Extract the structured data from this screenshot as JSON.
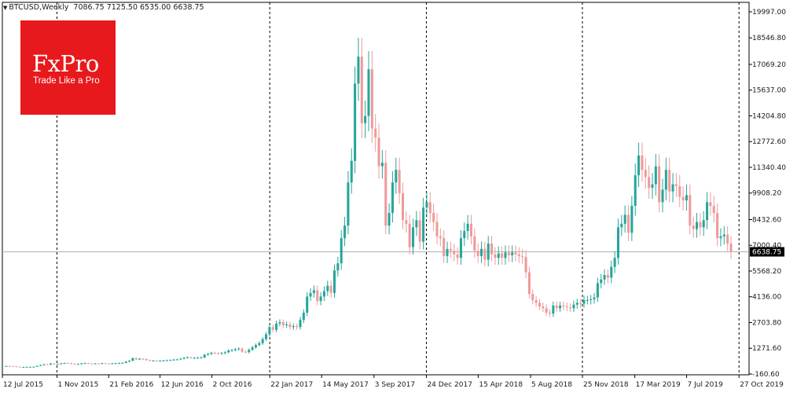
{
  "header": {
    "symbol": "BTCUSD,Weekly",
    "ohlc": "7086.75 7125.50 6535.00 6638.75"
  },
  "logo": {
    "name": "FxPro",
    "tagline": "Trade Like a Pro"
  },
  "current_price_label": "6638.75",
  "colors": {
    "up": "#26a69a",
    "down": "#ef9a9a",
    "price_tag": "#000000",
    "logo_bg": "#e8191c"
  },
  "chart_data": {
    "type": "candlestick",
    "title": "",
    "xlabel": "",
    "ylabel": "",
    "ylim": [
      -160.6,
      19997
    ],
    "grid": false,
    "period_separators": [
      "1 Nov 2015",
      "22 Jan 2017",
      "24 Dec 2017",
      "25 Nov 2018",
      "27 Oct 2019"
    ],
    "horizontal_line": 6638.75,
    "y_ticks": [
      "19997.00",
      "18546.80",
      "17069.20",
      "15637.00",
      "14204.80",
      "12772.60",
      "11340.40",
      "9908.20",
      "8432.60",
      "7000.40",
      "5568.20",
      "4136.00",
      "2703.80",
      "1271.60",
      "-160.60"
    ],
    "x_ticks": [
      "12 Jul 2015",
      "1 Nov 2015",
      "21 Feb 2016",
      "12 Jun 2016",
      "2 Oct 2016",
      "22 Jan 2017",
      "14 May 2017",
      "3 Sep 2017",
      "24 Dec 2017",
      "15 Apr 2018",
      "5 Aug 2018",
      "25 Nov 2018",
      "17 Mar 2019",
      "7 Jul 2019",
      "27 Oct 2019"
    ],
    "close": [
      285,
      280,
      265,
      245,
      225,
      232,
      238,
      240,
      245,
      290,
      335,
      380,
      360,
      420,
      390,
      400,
      430,
      450,
      440,
      410,
      385,
      395,
      430,
      445,
      420,
      410,
      425,
      415,
      440,
      420,
      410,
      430,
      440,
      450,
      460,
      530,
      580,
      720,
      650,
      690,
      670,
      610,
      580,
      585,
      570,
      580,
      590,
      605,
      610,
      640,
      650,
      690,
      740,
      770,
      730,
      740,
      750,
      760,
      910,
      960,
      1020,
      1000,
      970,
      1000,
      1050,
      1150,
      1170,
      1220,
      1250,
      1080,
      1050,
      1190,
      1320,
      1450,
      1560,
      1780,
      2050,
      2450,
      2300,
      2650,
      2720,
      2550,
      2600,
      2450,
      2500,
      2450,
      2850,
      3250,
      4150,
      4350,
      4500,
      3900,
      4150,
      4450,
      4750,
      4350,
      5600,
      6000,
      7400,
      8100,
      10500,
      11700,
      16000,
      17500,
      13800,
      14200,
      16800,
      13500,
      13000,
      11400,
      11600,
      8100,
      8800,
      10500,
      11200,
      9900,
      8400,
      8200,
      6900,
      8000,
      8400,
      7200,
      9100,
      9400,
      8800,
      8300,
      7500,
      7400,
      6400,
      6800,
      6700,
      6500,
      6300,
      7400,
      7800,
      8200,
      7500,
      6700,
      6400,
      6800,
      6200,
      7100,
      6500,
      6300,
      6550,
      6300,
      6600,
      6450,
      6600,
      6500,
      6400,
      6350,
      5500,
      4300,
      3950,
      3800,
      3600,
      3500,
      3250,
      3200,
      3650,
      3500,
      3650,
      3600,
      3550,
      3500,
      3700,
      3800,
      3750,
      3950,
      3950,
      4000,
      4100,
      4900,
      5100,
      5350,
      5200,
      5800,
      6300,
      8000,
      8200,
      8700,
      7700,
      9200,
      10900,
      12000,
      11200,
      10800,
      10200,
      10400,
      11400,
      9400,
      10100,
      11200,
      10000,
      10400,
      10300,
      9700,
      9500,
      9800,
      8100,
      7900,
      8300,
      8000,
      8400,
      9400,
      9200,
      8800,
      7400,
      7500,
      7600,
      7100,
      6638.75
    ]
  }
}
